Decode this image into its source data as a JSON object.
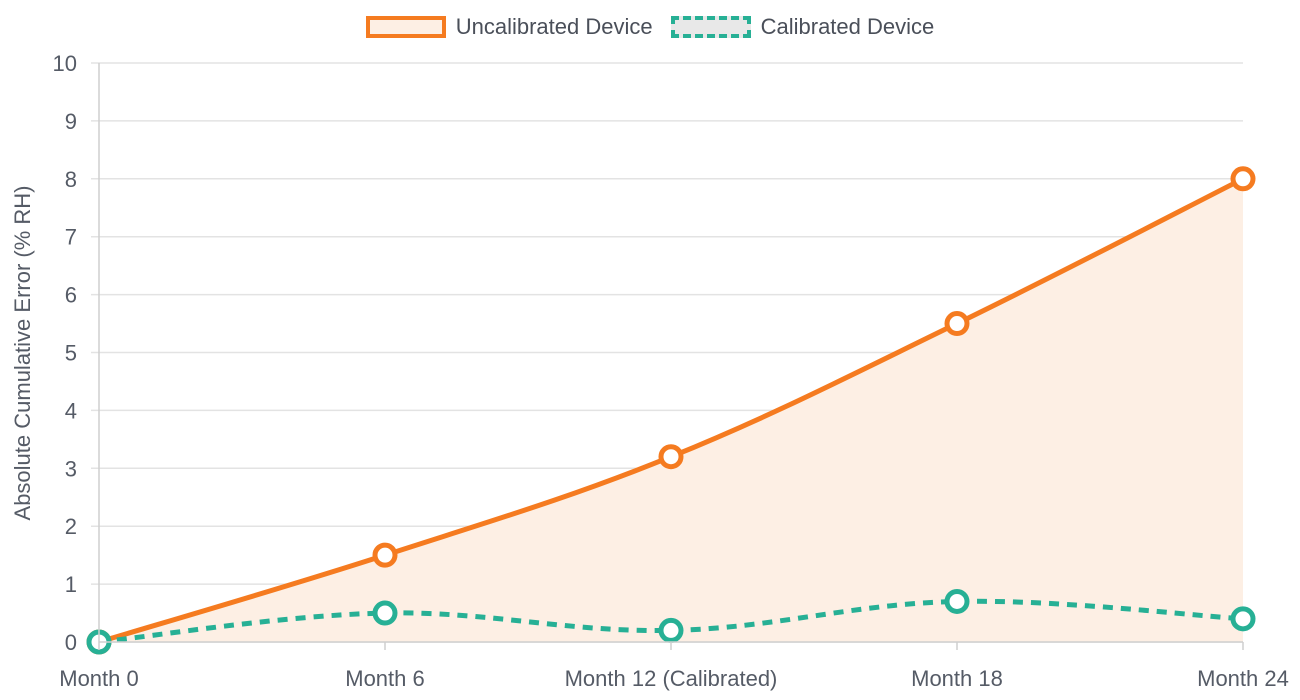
{
  "chart_data": {
    "type": "line",
    "categories": [
      "Month 0",
      "Month 6",
      "Month 12 (Calibrated)",
      "Month 18",
      "Month 24"
    ],
    "series": [
      {
        "name": "Uncalibrated Device",
        "values": [
          0,
          1.5,
          3.2,
          5.5,
          8.0
        ],
        "color": "#f57b20",
        "fill": "#fdefe4",
        "style": "solid",
        "filled": true
      },
      {
        "name": "Calibrated Device",
        "values": [
          0,
          0.5,
          0.2,
          0.7,
          0.4
        ],
        "color": "#27b095",
        "fill": "#e8e8e8",
        "style": "dashed",
        "filled": false
      }
    ],
    "ylabel": "Absolute Cumulative Error (% RH)",
    "xlabel": "",
    "ylim": [
      0,
      10
    ],
    "yticks": [
      0,
      1,
      2,
      3,
      4,
      5,
      6,
      7,
      8,
      9,
      10
    ],
    "grid": true,
    "legend_position": "top-center"
  }
}
